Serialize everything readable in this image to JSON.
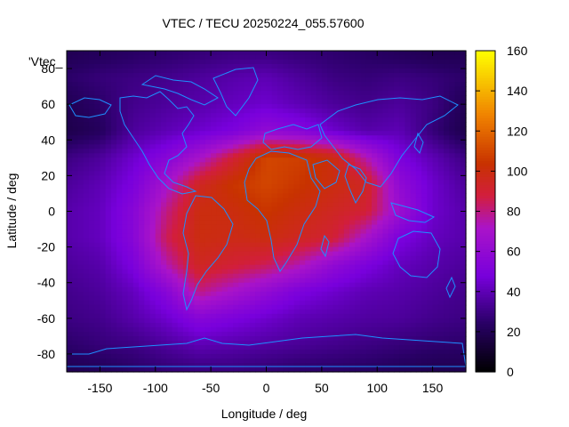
{
  "chart_data": {
    "type": "heatmap",
    "title": "VTEC / TECU 20250224_055.57600",
    "xlabel": "Longitude / deg",
    "ylabel": "Latitude / deg",
    "key_label": "'Vtec_",
    "xlim": [
      -180,
      180
    ],
    "ylim": [
      -90,
      90
    ],
    "x_ticks": [
      -150,
      -100,
      -50,
      0,
      50,
      100,
      150
    ],
    "y_ticks": [
      -80,
      -60,
      -40,
      -20,
      0,
      20,
      40,
      60,
      80
    ],
    "colorbar": {
      "min": 0,
      "max": 160,
      "ticks": [
        0,
        20,
        40,
        60,
        80,
        100,
        120,
        140,
        160
      ]
    },
    "grid": false,
    "overlay": "coastlines",
    "data_description_longitudes": [
      -180,
      -150,
      -120,
      -90,
      -60,
      -30,
      0,
      30,
      60,
      90,
      120,
      150,
      180
    ],
    "data_description_latitudes": [
      87.5,
      75,
      60,
      45,
      30,
      15,
      0,
      -15,
      -30,
      -45,
      -60,
      -75,
      -87.5
    ],
    "vtec_grid": [
      [
        20,
        22,
        24,
        26,
        28,
        30,
        30,
        28,
        26,
        24,
        22,
        20,
        20
      ],
      [
        25,
        28,
        30,
        32,
        35,
        38,
        40,
        35,
        30,
        28,
        30,
        28,
        25
      ],
      [
        20,
        25,
        32,
        35,
        38,
        42,
        45,
        40,
        35,
        32,
        35,
        30,
        20
      ],
      [
        18,
        22,
        35,
        40,
        45,
        50,
        60,
        55,
        45,
        38,
        40,
        28,
        18
      ],
      [
        30,
        35,
        45,
        55,
        70,
        90,
        110,
        108,
        100,
        75,
        50,
        40,
        30
      ],
      [
        35,
        40,
        50,
        70,
        95,
        105,
        110,
        105,
        100,
        95,
        60,
        45,
        35
      ],
      [
        38,
        42,
        55,
        80,
        100,
        100,
        105,
        100,
        95,
        90,
        65,
        45,
        38
      ],
      [
        38,
        42,
        55,
        85,
        100,
        98,
        100,
        95,
        90,
        70,
        50,
        42,
        38
      ],
      [
        35,
        38,
        50,
        75,
        95,
        90,
        85,
        75,
        60,
        50,
        42,
        38,
        35
      ],
      [
        32,
        35,
        42,
        55,
        80,
        70,
        60,
        50,
        45,
        40,
        38,
        35,
        32
      ],
      [
        30,
        32,
        38,
        45,
        55,
        50,
        45,
        40,
        38,
        36,
        35,
        32,
        30
      ],
      [
        25,
        28,
        30,
        35,
        40,
        38,
        36,
        34,
        32,
        30,
        28,
        26,
        25
      ],
      [
        20,
        22,
        25,
        28,
        30,
        30,
        28,
        26,
        25,
        24,
        22,
        20,
        20
      ]
    ],
    "series": [
      {
        "name": "'Vtec_",
        "type": "heatmap"
      }
    ]
  }
}
